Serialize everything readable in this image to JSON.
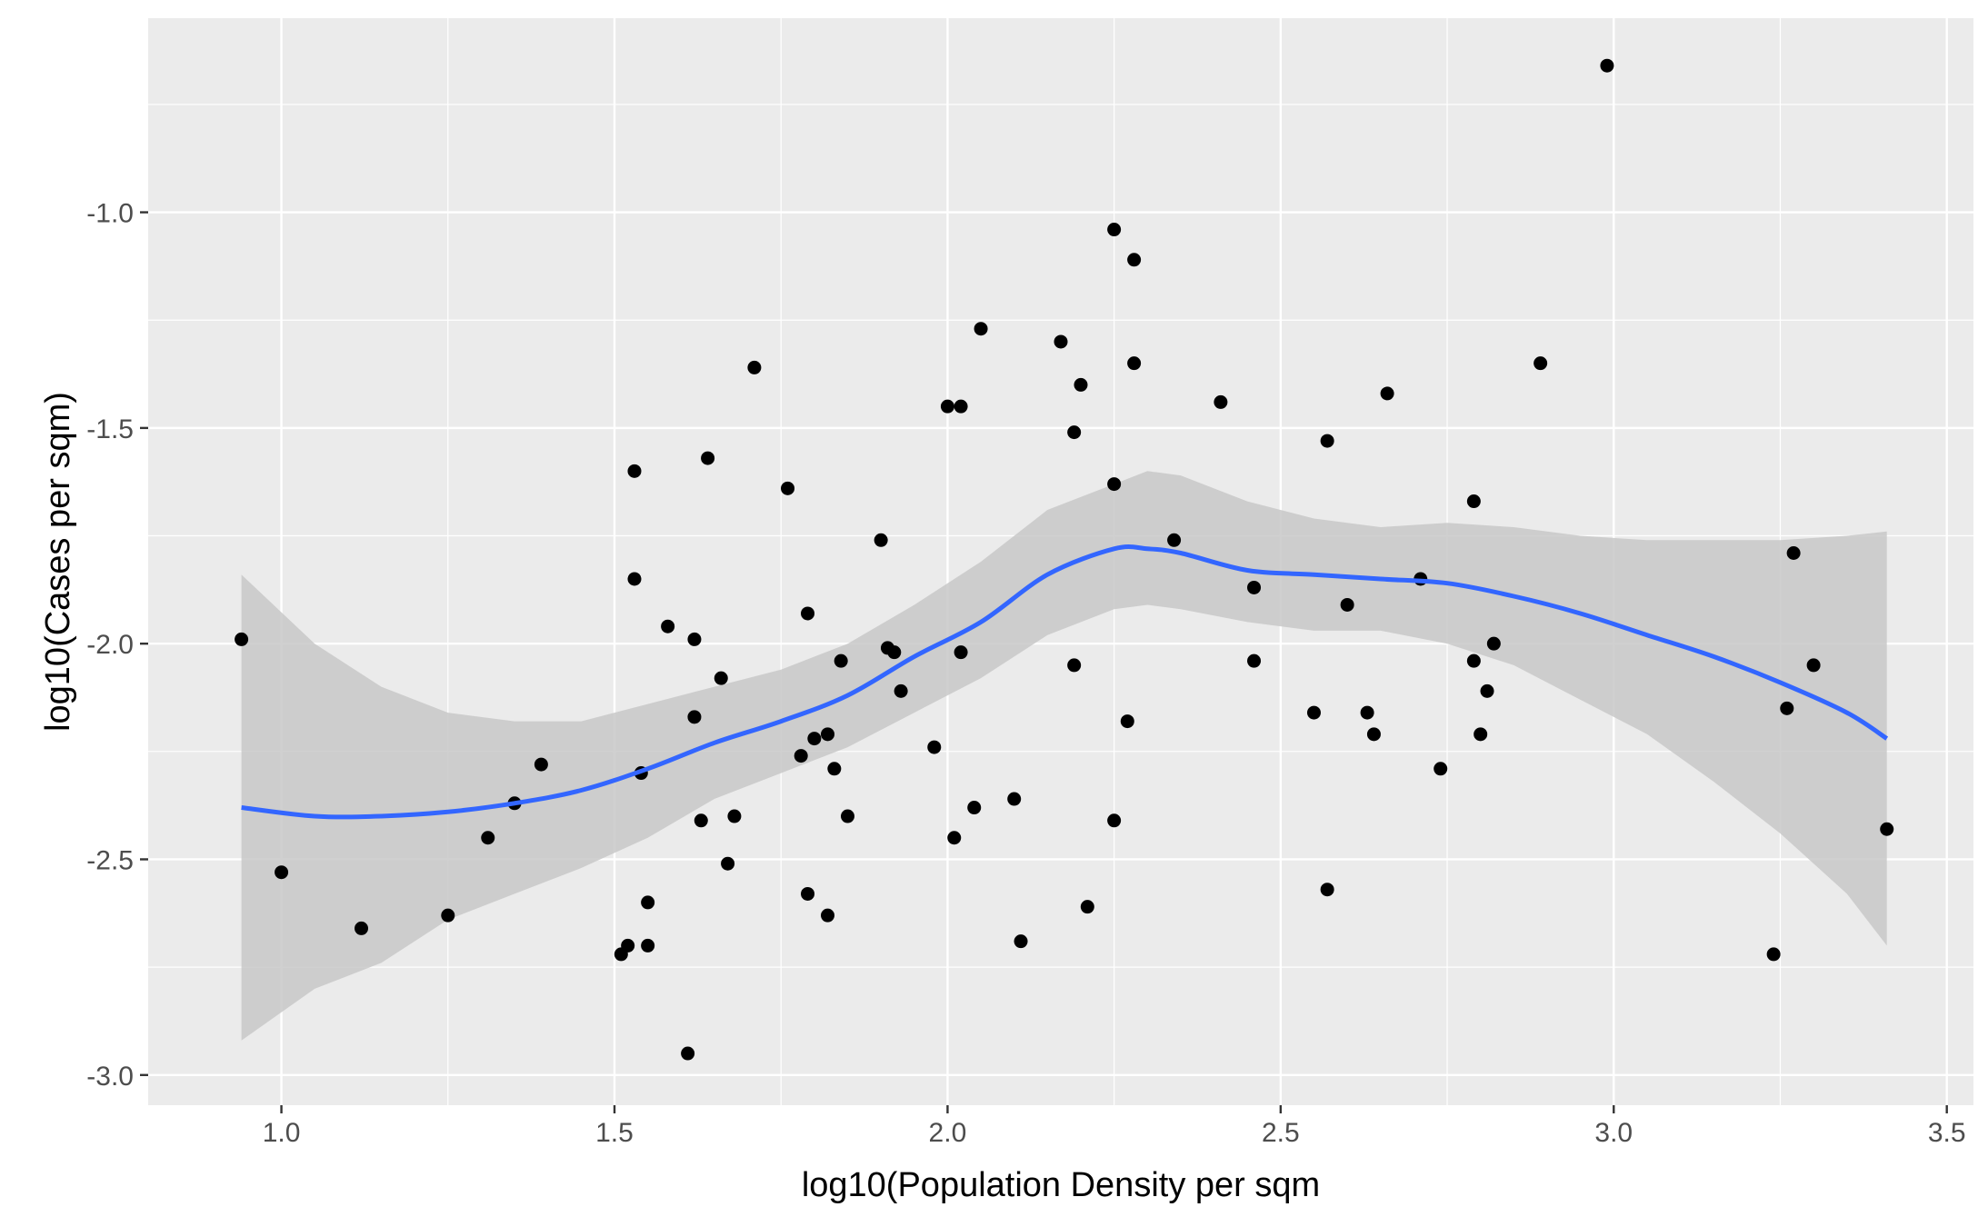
{
  "chart_data": {
    "type": "scatter",
    "xlabel": "log10(Population Density per sqm",
    "ylabel": "log10(Cases per sqm)",
    "xlim": [
      0.8,
      3.54
    ],
    "ylim": [
      -3.07,
      -0.55
    ],
    "x_ticks": [
      1.0,
      1.5,
      2.0,
      2.5,
      3.0,
      3.5
    ],
    "x_tick_labels": [
      "1.0",
      "1.5",
      "2.0",
      "2.5",
      "3.0",
      "3.5"
    ],
    "y_ticks": [
      -3.0,
      -2.5,
      -2.0,
      -1.5,
      -1.0
    ],
    "y_tick_labels": [
      "-3.0",
      "-2.5",
      "-2.0",
      "-1.5",
      "-1.0"
    ],
    "grid": true,
    "colors": {
      "panel": "#ebebeb",
      "grid": "#ffffff",
      "points": "#000000",
      "smooth_line": "#3366ff",
      "confidence_band": "#c8c8c8"
    },
    "points": [
      {
        "x": 0.94,
        "y": -1.99
      },
      {
        "x": 1.0,
        "y": -2.53
      },
      {
        "x": 1.12,
        "y": -2.66
      },
      {
        "x": 1.25,
        "y": -2.63
      },
      {
        "x": 1.31,
        "y": -2.45
      },
      {
        "x": 1.35,
        "y": -2.37
      },
      {
        "x": 1.39,
        "y": -2.28
      },
      {
        "x": 1.51,
        "y": -2.72
      },
      {
        "x": 1.52,
        "y": -2.7
      },
      {
        "x": 1.53,
        "y": -1.6
      },
      {
        "x": 1.53,
        "y": -1.85
      },
      {
        "x": 1.54,
        "y": -2.3
      },
      {
        "x": 1.55,
        "y": -2.6
      },
      {
        "x": 1.55,
        "y": -2.7
      },
      {
        "x": 1.58,
        "y": -1.96
      },
      {
        "x": 1.61,
        "y": -2.95
      },
      {
        "x": 1.62,
        "y": -1.99
      },
      {
        "x": 1.62,
        "y": -2.17
      },
      {
        "x": 1.63,
        "y": -2.41
      },
      {
        "x": 1.64,
        "y": -1.57
      },
      {
        "x": 1.66,
        "y": -2.08
      },
      {
        "x": 1.67,
        "y": -2.51
      },
      {
        "x": 1.68,
        "y": -2.4
      },
      {
        "x": 1.71,
        "y": -1.36
      },
      {
        "x": 1.76,
        "y": -1.64
      },
      {
        "x": 1.78,
        "y": -2.26
      },
      {
        "x": 1.79,
        "y": -2.58
      },
      {
        "x": 1.79,
        "y": -1.93
      },
      {
        "x": 1.8,
        "y": -2.22
      },
      {
        "x": 1.82,
        "y": -2.21
      },
      {
        "x": 1.82,
        "y": -2.63
      },
      {
        "x": 1.83,
        "y": -2.29
      },
      {
        "x": 1.84,
        "y": -2.04
      },
      {
        "x": 1.85,
        "y": -2.4
      },
      {
        "x": 1.9,
        "y": -1.76
      },
      {
        "x": 1.91,
        "y": -2.01
      },
      {
        "x": 1.92,
        "y": -2.02
      },
      {
        "x": 1.93,
        "y": -2.11
      },
      {
        "x": 1.98,
        "y": -2.24
      },
      {
        "x": 2.0,
        "y": -1.45
      },
      {
        "x": 2.01,
        "y": -2.45
      },
      {
        "x": 2.02,
        "y": -1.45
      },
      {
        "x": 2.02,
        "y": -2.02
      },
      {
        "x": 2.04,
        "y": -2.38
      },
      {
        "x": 2.05,
        "y": -1.27
      },
      {
        "x": 2.1,
        "y": -2.36
      },
      {
        "x": 2.11,
        "y": -2.69
      },
      {
        "x": 2.17,
        "y": -1.3
      },
      {
        "x": 2.19,
        "y": -1.51
      },
      {
        "x": 2.19,
        "y": -2.05
      },
      {
        "x": 2.2,
        "y": -1.4
      },
      {
        "x": 2.21,
        "y": -2.61
      },
      {
        "x": 2.25,
        "y": -1.04
      },
      {
        "x": 2.25,
        "y": -1.63
      },
      {
        "x": 2.25,
        "y": -2.41
      },
      {
        "x": 2.27,
        "y": -2.18
      },
      {
        "x": 2.28,
        "y": -1.11
      },
      {
        "x": 2.28,
        "y": -1.35
      },
      {
        "x": 2.34,
        "y": -1.76
      },
      {
        "x": 2.41,
        "y": -1.44
      },
      {
        "x": 2.46,
        "y": -1.87
      },
      {
        "x": 2.46,
        "y": -2.04
      },
      {
        "x": 2.55,
        "y": -2.16
      },
      {
        "x": 2.57,
        "y": -1.53
      },
      {
        "x": 2.57,
        "y": -2.57
      },
      {
        "x": 2.6,
        "y": -1.91
      },
      {
        "x": 2.63,
        "y": -2.16
      },
      {
        "x": 2.64,
        "y": -2.21
      },
      {
        "x": 2.66,
        "y": -1.42
      },
      {
        "x": 2.71,
        "y": -1.85
      },
      {
        "x": 2.74,
        "y": -2.29
      },
      {
        "x": 2.79,
        "y": -1.67
      },
      {
        "x": 2.79,
        "y": -2.04
      },
      {
        "x": 2.8,
        "y": -2.21
      },
      {
        "x": 2.81,
        "y": -2.11
      },
      {
        "x": 2.82,
        "y": -2.0
      },
      {
        "x": 2.89,
        "y": -1.35
      },
      {
        "x": 2.99,
        "y": -0.66
      },
      {
        "x": 3.24,
        "y": -2.72
      },
      {
        "x": 3.26,
        "y": -2.15
      },
      {
        "x": 3.27,
        "y": -1.79
      },
      {
        "x": 3.3,
        "y": -2.05
      },
      {
        "x": 3.41,
        "y": -2.43
      }
    ],
    "smooth": [
      {
        "x": 0.94,
        "y": -2.38,
        "lo": -2.92,
        "hi": -1.84
      },
      {
        "x": 1.05,
        "y": -2.4,
        "lo": -2.8,
        "hi": -2.0
      },
      {
        "x": 1.15,
        "y": -2.4,
        "lo": -2.74,
        "hi": -2.1
      },
      {
        "x": 1.25,
        "y": -2.39,
        "lo": -2.64,
        "hi": -2.16
      },
      {
        "x": 1.35,
        "y": -2.37,
        "lo": -2.58,
        "hi": -2.18
      },
      {
        "x": 1.45,
        "y": -2.34,
        "lo": -2.52,
        "hi": -2.18
      },
      {
        "x": 1.55,
        "y": -2.29,
        "lo": -2.45,
        "hi": -2.14
      },
      {
        "x": 1.65,
        "y": -2.23,
        "lo": -2.36,
        "hi": -2.1
      },
      {
        "x": 1.75,
        "y": -2.18,
        "lo": -2.3,
        "hi": -2.06
      },
      {
        "x": 1.85,
        "y": -2.12,
        "lo": -2.24,
        "hi": -2.0
      },
      {
        "x": 1.95,
        "y": -2.03,
        "lo": -2.16,
        "hi": -1.91
      },
      {
        "x": 2.05,
        "y": -1.95,
        "lo": -2.08,
        "hi": -1.81
      },
      {
        "x": 2.15,
        "y": -1.84,
        "lo": -1.98,
        "hi": -1.69
      },
      {
        "x": 2.25,
        "y": -1.78,
        "lo": -1.92,
        "hi": -1.63
      },
      {
        "x": 2.3,
        "y": -1.78,
        "lo": -1.91,
        "hi": -1.6
      },
      {
        "x": 2.35,
        "y": -1.79,
        "lo": -1.92,
        "hi": -1.61
      },
      {
        "x": 2.45,
        "y": -1.83,
        "lo": -1.95,
        "hi": -1.67
      },
      {
        "x": 2.55,
        "y": -1.84,
        "lo": -1.97,
        "hi": -1.71
      },
      {
        "x": 2.65,
        "y": -1.85,
        "lo": -1.97,
        "hi": -1.73
      },
      {
        "x": 2.75,
        "y": -1.86,
        "lo": -2.0,
        "hi": -1.72
      },
      {
        "x": 2.85,
        "y": -1.89,
        "lo": -2.05,
        "hi": -1.73
      },
      {
        "x": 2.95,
        "y": -1.93,
        "lo": -2.13,
        "hi": -1.75
      },
      {
        "x": 3.05,
        "y": -1.98,
        "lo": -2.21,
        "hi": -1.76
      },
      {
        "x": 3.15,
        "y": -2.03,
        "lo": -2.32,
        "hi": -1.76
      },
      {
        "x": 3.25,
        "y": -2.09,
        "lo": -2.44,
        "hi": -1.76
      },
      {
        "x": 3.35,
        "y": -2.16,
        "lo": -2.58,
        "hi": -1.75
      },
      {
        "x": 3.41,
        "y": -2.22,
        "lo": -2.7,
        "hi": -1.74
      }
    ]
  }
}
